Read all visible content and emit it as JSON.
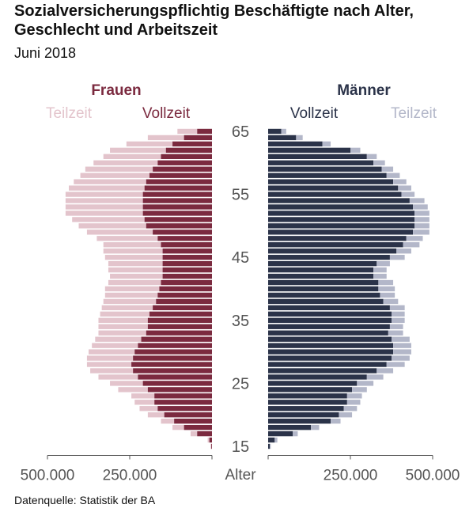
{
  "title": "Sozialversicherungspflichtig Beschäftigte nach Alter, Geschlecht und Arbeitszeit",
  "subtitle": "Juni 2018",
  "source": "Datenquelle: Statistik der BA",
  "colors": {
    "women_full": "#7b2a3f",
    "women_part": "#e3c4cc",
    "men_full": "#2b3349",
    "men_part": "#b3b7c9",
    "text": "#555555"
  },
  "chart_data": {
    "type": "bar",
    "orientation": "population-pyramid",
    "left_group_label": "Frauen",
    "right_group_label": "Männer",
    "women_labels": {
      "part": "Teilzeit",
      "full": "Vollzeit"
    },
    "men_labels": {
      "full": "Vollzeit",
      "part": "Teilzeit"
    },
    "age_axis_label": "Alter",
    "age_ticks": [
      15,
      25,
      35,
      45,
      55,
      65
    ],
    "x_ticks_left": [
      "500.000",
      "250.000"
    ],
    "x_ticks_right": [
      "250.000",
      "500.000"
    ],
    "xlim": [
      0,
      500000
    ],
    "ages": [
      15,
      16,
      17,
      18,
      19,
      20,
      21,
      22,
      23,
      24,
      25,
      26,
      27,
      28,
      29,
      30,
      31,
      32,
      33,
      34,
      35,
      36,
      37,
      38,
      39,
      40,
      41,
      42,
      43,
      44,
      45,
      46,
      47,
      48,
      49,
      50,
      51,
      52,
      53,
      54,
      55,
      56,
      57,
      58,
      59,
      60,
      61,
      62,
      63,
      64,
      65
    ],
    "series": [
      {
        "name": "Frauen Vollzeit",
        "values": [
          2000,
          8000,
          45000,
          85000,
          115000,
          145000,
          165000,
          175000,
          175000,
          195000,
          210000,
          225000,
          240000,
          245000,
          240000,
          235000,
          225000,
          215000,
          200000,
          195000,
          195000,
          190000,
          180000,
          170000,
          165000,
          160000,
          155000,
          150000,
          150000,
          150000,
          150000,
          150000,
          155000,
          165000,
          180000,
          200000,
          205000,
          210000,
          210000,
          210000,
          210000,
          205000,
          200000,
          190000,
          180000,
          165000,
          155000,
          140000,
          120000,
          85000,
          45000
        ]
      },
      {
        "name": "Frauen Teilzeit",
        "values": [
          2000,
          5000,
          20000,
          35000,
          40000,
          50000,
          55000,
          60000,
          70000,
          90000,
          100000,
          120000,
          130000,
          135000,
          140000,
          140000,
          140000,
          140000,
          145000,
          150000,
          150000,
          150000,
          155000,
          160000,
          160000,
          165000,
          160000,
          160000,
          165000,
          165000,
          175000,
          180000,
          175000,
          185000,
          200000,
          205000,
          220000,
          235000,
          235000,
          235000,
          235000,
          230000,
          220000,
          210000,
          205000,
          195000,
          175000,
          170000,
          140000,
          110000,
          60000
        ]
      },
      {
        "name": "Männer Vollzeit",
        "values": [
          5000,
          20000,
          75000,
          130000,
          190000,
          215000,
          230000,
          240000,
          240000,
          255000,
          270000,
          300000,
          330000,
          360000,
          375000,
          380000,
          380000,
          375000,
          365000,
          370000,
          375000,
          375000,
          370000,
          350000,
          340000,
          335000,
          335000,
          320000,
          320000,
          330000,
          370000,
          390000,
          410000,
          420000,
          440000,
          445000,
          445000,
          445000,
          440000,
          430000,
          405000,
          395000,
          380000,
          360000,
          345000,
          320000,
          300000,
          250000,
          165000,
          85000,
          40000
        ]
      },
      {
        "name": "Männer Teilzeit",
        "values": [
          3000,
          8000,
          15000,
          25000,
          30000,
          40000,
          40000,
          40000,
          45000,
          45000,
          50000,
          50000,
          50000,
          55000,
          55000,
          55000,
          55000,
          55000,
          45000,
          40000,
          40000,
          40000,
          45000,
          45000,
          45000,
          50000,
          45000,
          40000,
          40000,
          40000,
          45000,
          45000,
          50000,
          50000,
          50000,
          45000,
          45000,
          45000,
          45000,
          45000,
          40000,
          40000,
          40000,
          40000,
          35000,
          35000,
          30000,
          30000,
          25000,
          20000,
          15000
        ]
      }
    ]
  }
}
